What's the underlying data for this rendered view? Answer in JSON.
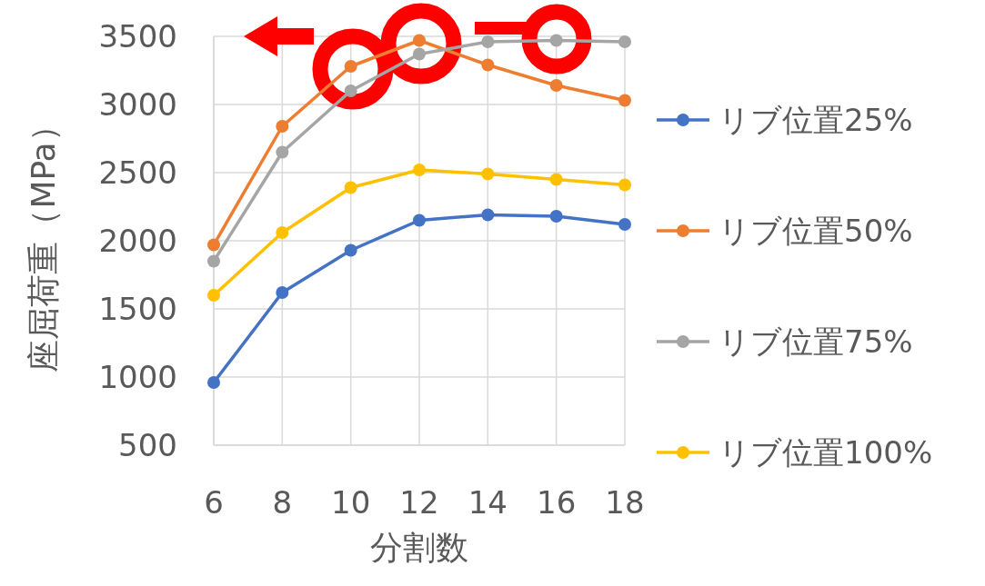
{
  "chart_data": {
    "type": "line",
    "xlabel": "分割数",
    "ylabel": "座屈荷重（MPa）",
    "x": [
      6,
      8,
      10,
      12,
      14,
      16,
      18
    ],
    "xlim": [
      6,
      18
    ],
    "xticks": [
      6,
      8,
      10,
      12,
      14,
      16,
      18
    ],
    "ylim": [
      500,
      3500
    ],
    "yticks": [
      500,
      1000,
      1500,
      2000,
      2500,
      3000,
      3500
    ],
    "grid": true,
    "legend": "right",
    "marker": "circle",
    "line_style": "solid",
    "series": [
      {
        "name": "リブ位置25%",
        "color": "#4472c4",
        "values": [
          960,
          1620,
          1930,
          2150,
          2190,
          2180,
          2120
        ]
      },
      {
        "name": "リブ位置50%",
        "color": "#ed7d31",
        "values": [
          1970,
          2840,
          3280,
          3470,
          3290,
          3140,
          3030
        ]
      },
      {
        "name": "リブ位置75%",
        "color": "#a5a5a5",
        "values": [
          1850,
          2650,
          3100,
          3370,
          3460,
          3470,
          3460
        ]
      },
      {
        "name": "リブ位置100%",
        "color": "#ffc000",
        "values": [
          1600,
          2060,
          2390,
          2520,
          2490,
          2450,
          2410
        ]
      }
    ]
  }
}
